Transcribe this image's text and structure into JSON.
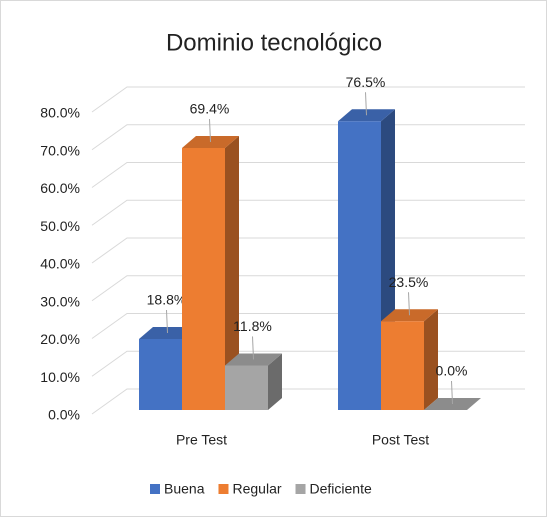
{
  "chart_data": {
    "type": "bar3d",
    "title": "Dominio tecnológico",
    "categories": [
      "Pre Test",
      "Post Test"
    ],
    "series": [
      {
        "name": "Buena",
        "color": "#4472c4",
        "values": [
          18.8,
          76.5
        ],
        "value_labels": [
          "18.8%",
          "76.5%"
        ]
      },
      {
        "name": "Regular",
        "color": "#ed7d31",
        "values": [
          69.4,
          23.5
        ],
        "value_labels": [
          "69.4%",
          "23.5%"
        ]
      },
      {
        "name": "Deficiente",
        "color": "#a5a5a5",
        "values": [
          11.8,
          0.0
        ],
        "value_labels": [
          "11.8%",
          "0.0%"
        ]
      }
    ],
    "ylim": [
      0,
      80
    ],
    "yticks": [
      {
        "value": 0,
        "label": "0.0%"
      },
      {
        "value": 10,
        "label": "10.0%"
      },
      {
        "value": 20,
        "label": "20.0%"
      },
      {
        "value": 30,
        "label": "30.0%"
      },
      {
        "value": 40,
        "label": "40.0%"
      },
      {
        "value": 50,
        "label": "50.0%"
      },
      {
        "value": 60,
        "label": "60.0%"
      },
      {
        "value": 70,
        "label": "70.0%"
      },
      {
        "value": 80,
        "label": "80.0%"
      }
    ],
    "grid": true,
    "legend": "bottom"
  }
}
